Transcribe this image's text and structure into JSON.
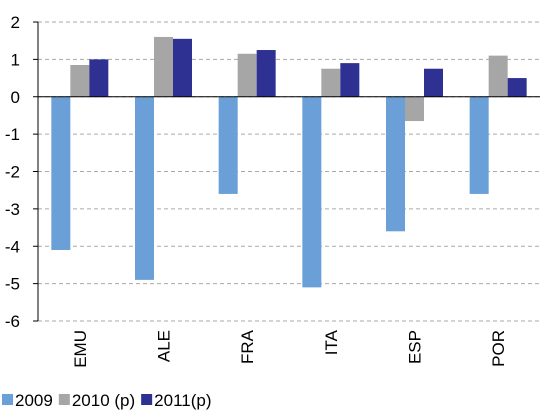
{
  "chart_data": {
    "type": "bar",
    "categories": [
      "EMU",
      "ALE",
      "FRA",
      "ITA",
      "ESP",
      "POR"
    ],
    "series": [
      {
        "name": "2009",
        "color": "#6a9fd8",
        "values": [
          -4.1,
          -4.9,
          -2.6,
          -5.1,
          -3.6,
          -2.6
        ]
      },
      {
        "name": "2010 (p)",
        "color": "#a6a6a6",
        "values": [
          0.85,
          1.6,
          1.15,
          0.75,
          -0.65,
          1.1
        ]
      },
      {
        "name": "2011(p)",
        "color": "#2e3192",
        "values": [
          1.0,
          1.55,
          1.25,
          0.9,
          0.75,
          0.5
        ]
      }
    ],
    "ylim": [
      -6,
      2
    ],
    "yticks": [
      -6,
      -5,
      -4,
      -3,
      -2,
      -1,
      0,
      1,
      2
    ],
    "grid": true,
    "legend": "bottom-left"
  }
}
